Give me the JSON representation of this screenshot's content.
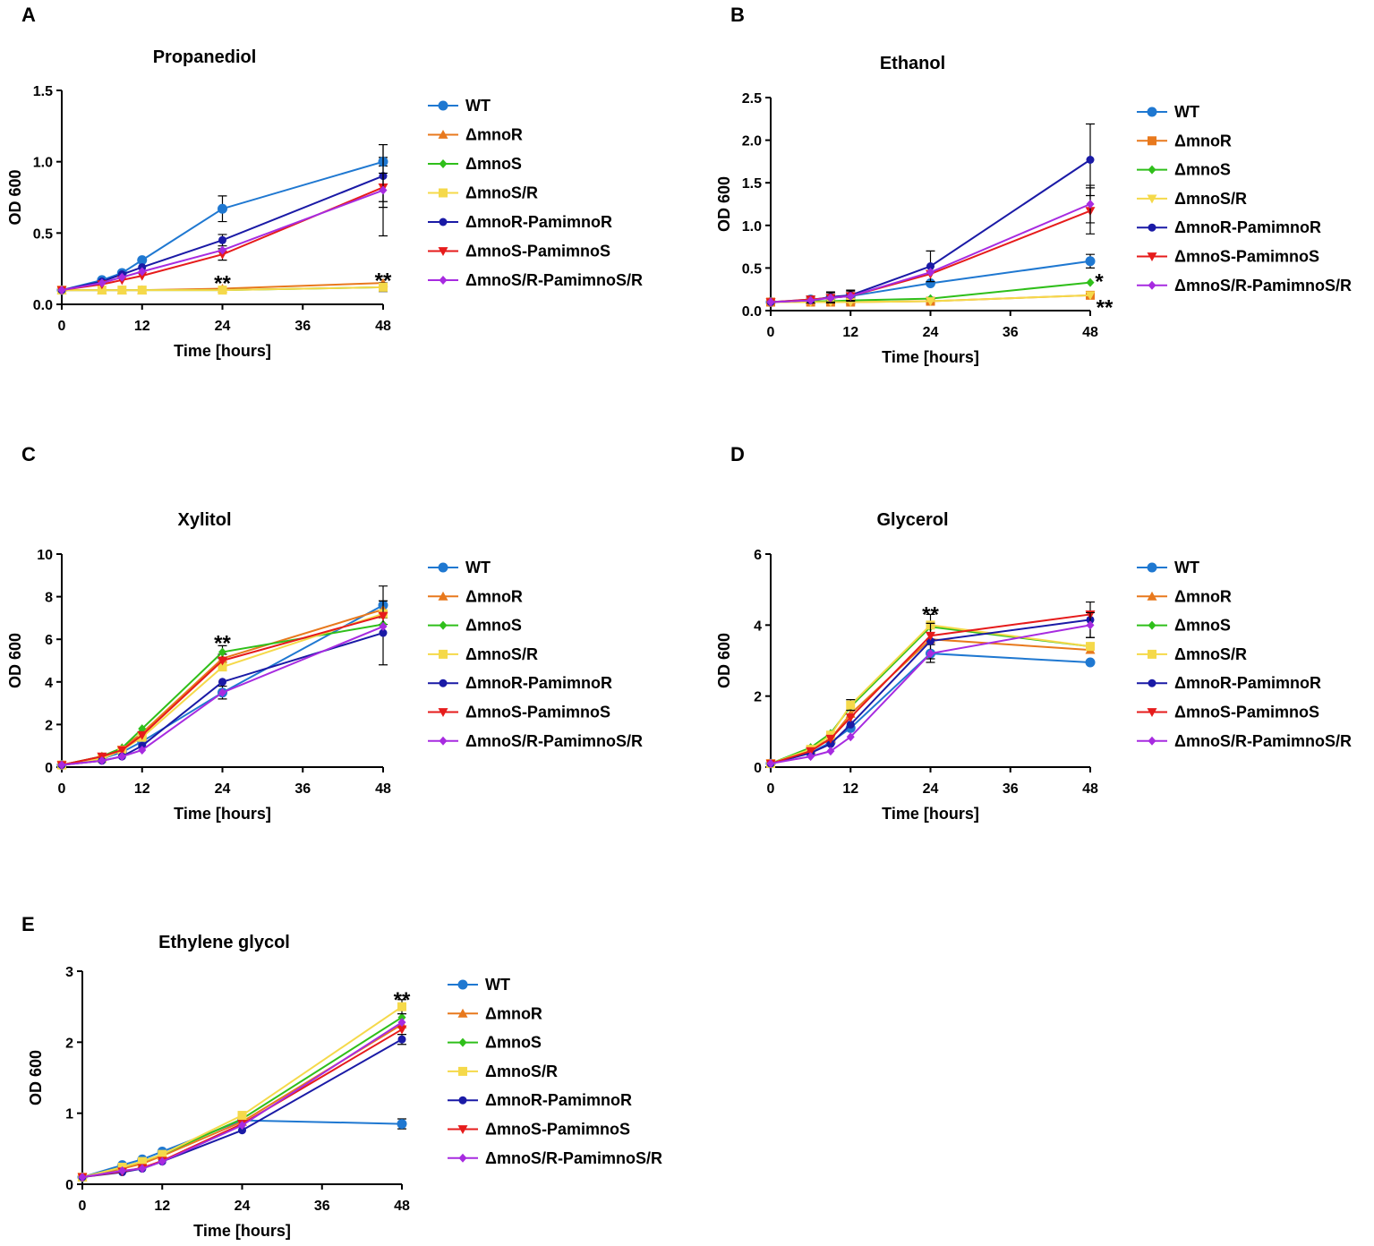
{
  "figure": {
    "legend_order": [
      "WT",
      "ΔmnoR",
      "ΔmnoS",
      "ΔmnoS/R",
      "ΔmnoR-PamimnoR",
      "ΔmnoS-PamimnoS",
      "ΔmnoS/R-PamimnoS/R"
    ]
  },
  "series_colors": {
    "WT": "#1f78d1",
    "ΔmnoR": "#e8791d",
    "ΔmnoS": "#2fbf1a",
    "ΔmnoS/R": "#f5d94a",
    "ΔmnoR-PamimnoR": "#1a1aa6",
    "ΔmnoS-PamimnoS": "#e61b1b",
    "ΔmnoS/R-PamimnoS/R": "#a72be0"
  },
  "chart_data": [
    {
      "panel": "A",
      "type": "line",
      "title": "Propanediol",
      "xlabel": "Time [hours]",
      "ylabel": "OD 600",
      "xlim": [
        0,
        48
      ],
      "ylim": [
        0,
        1.5
      ],
      "xticks": [
        0,
        12,
        24,
        36,
        48
      ],
      "yticks": [
        0.0,
        0.5,
        1.0,
        1.5
      ],
      "ytick_labels": [
        "0.0",
        "0.5",
        "1.0",
        "1.5"
      ],
      "x": [
        0,
        6,
        9,
        12,
        24,
        48
      ],
      "series": [
        {
          "name": "WT",
          "marker": "circle",
          "values": [
            0.1,
            0.17,
            0.22,
            0.31,
            0.67,
            1.0
          ],
          "errors": [
            0,
            0,
            0,
            0,
            0.09,
            0.03
          ]
        },
        {
          "name": "ΔmnoR",
          "marker": "triangle-up",
          "values": [
            0.1,
            0.1,
            0.1,
            0.1,
            0.11,
            0.15
          ],
          "errors": [
            0,
            0,
            0,
            0,
            0,
            0
          ]
        },
        {
          "name": "ΔmnoS",
          "marker": "diamond",
          "values": [
            0.1,
            0.1,
            0.1,
            0.1,
            0.1,
            0.12
          ],
          "errors": [
            0,
            0,
            0,
            0,
            0,
            0.03
          ]
        },
        {
          "name": "ΔmnoS/R",
          "marker": "square",
          "values": [
            0.1,
            0.1,
            0.1,
            0.1,
            0.1,
            0.12
          ],
          "errors": [
            0,
            0,
            0,
            0,
            0,
            0
          ]
        },
        {
          "name": "ΔmnoR-PamimnoR",
          "marker": "circle-small",
          "values": [
            0.1,
            0.16,
            0.21,
            0.26,
            0.45,
            0.9
          ],
          "errors": [
            0,
            0,
            0,
            0,
            0.04,
            0.22
          ]
        },
        {
          "name": "ΔmnoS-PamimnoS",
          "marker": "triangle-down",
          "values": [
            0.1,
            0.14,
            0.17,
            0.2,
            0.35,
            0.82
          ],
          "errors": [
            0,
            0,
            0,
            0,
            0.04,
            0.1
          ]
        },
        {
          "name": "ΔmnoS/R-PamimnoS/R",
          "marker": "diamond",
          "values": [
            0.1,
            0.15,
            0.19,
            0.23,
            0.38,
            0.8
          ],
          "errors": [
            0,
            0,
            0,
            0,
            0,
            0.32
          ]
        }
      ],
      "annotations": [
        {
          "text": "**",
          "x": 24,
          "y": 0.16
        },
        {
          "text": "**",
          "x": 48,
          "y": 0.18
        }
      ]
    },
    {
      "panel": "B",
      "type": "line",
      "title": "Ethanol",
      "xlabel": "Time [hours]",
      "ylabel": "OD 600",
      "xlim": [
        0,
        48
      ],
      "ylim": [
        0,
        2.5
      ],
      "xticks": [
        0,
        12,
        24,
        36,
        48
      ],
      "yticks": [
        0.0,
        0.5,
        1.0,
        1.5,
        2.0,
        2.5
      ],
      "ytick_labels": [
        "0.0",
        "0.5",
        "1.0",
        "1.5",
        "2.0",
        "2.5"
      ],
      "x": [
        0,
        6,
        9,
        12,
        24,
        48
      ],
      "series": [
        {
          "name": "WT",
          "marker": "circle",
          "values": [
            0.1,
            0.13,
            0.15,
            0.17,
            0.32,
            0.58
          ],
          "errors": [
            0,
            0,
            0.03,
            0.03,
            0,
            0.08
          ]
        },
        {
          "name": "ΔmnoR",
          "marker": "square",
          "values": [
            0.1,
            0.1,
            0.1,
            0.1,
            0.11,
            0.18
          ],
          "errors": [
            0,
            0.02,
            0.02,
            0.02,
            0,
            0
          ]
        },
        {
          "name": "ΔmnoS",
          "marker": "diamond",
          "values": [
            0.1,
            0.11,
            0.11,
            0.12,
            0.14,
            0.33
          ],
          "errors": [
            0,
            0,
            0,
            0,
            0,
            0
          ]
        },
        {
          "name": "ΔmnoS/R",
          "marker": "triangle-down",
          "values": [
            0.1,
            0.1,
            0.1,
            0.1,
            0.11,
            0.18
          ],
          "errors": [
            0,
            0,
            0,
            0,
            0,
            0
          ]
        },
        {
          "name": "ΔmnoR-PamimnoR",
          "marker": "circle-small",
          "values": [
            0.1,
            0.12,
            0.16,
            0.18,
            0.52,
            1.77
          ],
          "errors": [
            0,
            0,
            0.06,
            0.06,
            0.18,
            0.42
          ]
        },
        {
          "name": "ΔmnoS-PamimnoS",
          "marker": "triangle-down",
          "values": [
            0.1,
            0.13,
            0.15,
            0.17,
            0.43,
            1.17
          ],
          "errors": [
            0,
            0.04,
            0.06,
            0.06,
            0,
            0.27
          ]
        },
        {
          "name": "ΔmnoS/R-PamimnoS/R",
          "marker": "diamond",
          "values": [
            0.1,
            0.12,
            0.15,
            0.17,
            0.45,
            1.25
          ],
          "errors": [
            0,
            0,
            0,
            0,
            0,
            0.22
          ]
        }
      ],
      "annotations": [
        {
          "text": "*",
          "x": 48,
          "y": 0.36,
          "dx": 10
        },
        {
          "text": "**",
          "x": 48,
          "y": 0.06,
          "dx": 16
        }
      ]
    },
    {
      "panel": "C",
      "type": "line",
      "title": "Xylitol",
      "xlabel": "Time [hours]",
      "ylabel": "OD 600",
      "xlim": [
        0,
        48
      ],
      "ylim": [
        0,
        10
      ],
      "xticks": [
        0,
        12,
        24,
        36,
        48
      ],
      "yticks": [
        0,
        2,
        4,
        6,
        8,
        10
      ],
      "ytick_labels": [
        "0",
        "2",
        "4",
        "6",
        "8",
        "10"
      ],
      "x": [
        0,
        6,
        9,
        12,
        24,
        48
      ],
      "series": [
        {
          "name": "WT",
          "marker": "circle",
          "values": [
            0.1,
            0.4,
            0.7,
            1.2,
            3.5,
            7.6
          ],
          "errors": [
            0,
            0,
            0,
            0,
            0.3,
            0.9
          ]
        },
        {
          "name": "ΔmnoR",
          "marker": "triangle-up",
          "values": [
            0.1,
            0.5,
            0.9,
            1.6,
            5.1,
            7.4
          ],
          "errors": [
            0,
            0,
            0,
            0,
            0.2,
            0.4
          ]
        },
        {
          "name": "ΔmnoS",
          "marker": "diamond",
          "values": [
            0.1,
            0.5,
            0.9,
            1.8,
            5.4,
            6.7
          ],
          "errors": [
            0,
            0,
            0,
            0,
            0.3,
            0
          ]
        },
        {
          "name": "ΔmnoS/R",
          "marker": "square",
          "values": [
            0.1,
            0.4,
            0.8,
            1.4,
            4.7,
            7.2
          ],
          "errors": [
            0,
            0,
            0,
            0,
            0,
            0
          ]
        },
        {
          "name": "ΔmnoR-PamimnoR",
          "marker": "circle-small",
          "values": [
            0.1,
            0.3,
            0.5,
            1.0,
            4.0,
            6.3
          ],
          "errors": [
            0,
            0,
            0,
            0,
            0,
            1.5
          ]
        },
        {
          "name": "ΔmnoS-PamimnoS",
          "marker": "triangle-down",
          "values": [
            0.1,
            0.5,
            0.8,
            1.5,
            5.0,
            7.1
          ],
          "errors": [
            0,
            0,
            0,
            0,
            0,
            0
          ]
        },
        {
          "name": "ΔmnoS/R-PamimnoS/R",
          "marker": "diamond",
          "values": [
            0.1,
            0.3,
            0.5,
            0.8,
            3.5,
            6.6
          ],
          "errors": [
            0,
            0,
            0,
            0,
            0,
            0
          ]
        }
      ],
      "annotations": [
        {
          "text": "**",
          "x": 24,
          "y": 5.9
        }
      ]
    },
    {
      "panel": "D",
      "type": "line",
      "title": "Glycerol",
      "xlabel": "Time [hours]",
      "ylabel": "OD 600",
      "xlim": [
        0,
        48
      ],
      "ylim": [
        0,
        6
      ],
      "xticks": [
        0,
        12,
        24,
        36,
        48
      ],
      "yticks": [
        0,
        2,
        4,
        6
      ],
      "ytick_labels": [
        "0",
        "2",
        "4",
        "6"
      ],
      "x": [
        0,
        6,
        9,
        12,
        24,
        48
      ],
      "series": [
        {
          "name": "WT",
          "marker": "circle",
          "values": [
            0.1,
            0.4,
            0.7,
            1.1,
            3.2,
            2.95
          ],
          "errors": [
            0,
            0,
            0,
            0,
            0.25,
            0
          ]
        },
        {
          "name": "ΔmnoR",
          "marker": "triangle-up",
          "values": [
            0.1,
            0.5,
            0.8,
            1.5,
            3.6,
            3.3
          ],
          "errors": [
            0,
            0,
            0,
            0,
            0,
            0
          ]
        },
        {
          "name": "ΔmnoS",
          "marker": "diamond",
          "values": [
            0.1,
            0.55,
            0.95,
            1.7,
            3.95,
            3.4
          ],
          "errors": [
            0,
            0,
            0,
            0,
            0.35,
            0
          ]
        },
        {
          "name": "ΔmnoS/R",
          "marker": "square",
          "values": [
            0.1,
            0.5,
            0.9,
            1.75,
            4.0,
            3.4
          ],
          "errors": [
            0,
            0,
            0,
            0.15,
            0,
            0
          ]
        },
        {
          "name": "ΔmnoR-PamimnoR",
          "marker": "circle-small",
          "values": [
            0.1,
            0.4,
            0.65,
            1.2,
            3.55,
            4.15
          ],
          "errors": [
            0,
            0,
            0,
            0,
            0.5,
            0.5
          ]
        },
        {
          "name": "ΔmnoS-PamimnoS",
          "marker": "triangle-down",
          "values": [
            0.1,
            0.45,
            0.8,
            1.4,
            3.7,
            4.3
          ],
          "errors": [
            0,
            0,
            0,
            0,
            0,
            0
          ]
        },
        {
          "name": "ΔmnoS/R-PamimnoS/R",
          "marker": "diamond",
          "values": [
            0.1,
            0.3,
            0.45,
            0.85,
            3.2,
            4.0
          ],
          "errors": [
            0,
            0,
            0,
            0,
            0,
            0.35
          ]
        }
      ],
      "annotations": [
        {
          "text": "**",
          "x": 24,
          "y": 4.35
        }
      ]
    },
    {
      "panel": "E",
      "type": "line",
      "title": "Ethylene glycol",
      "xlabel": "Time [hours]",
      "ylabel": "OD 600",
      "xlim": [
        0,
        48
      ],
      "ylim": [
        0,
        3
      ],
      "xticks": [
        0,
        12,
        24,
        36,
        48
      ],
      "yticks": [
        0,
        1,
        2,
        3
      ],
      "ytick_labels": [
        "0",
        "1",
        "2",
        "3"
      ],
      "x": [
        0,
        6,
        9,
        12,
        24,
        48
      ],
      "series": [
        {
          "name": "WT",
          "marker": "circle",
          "values": [
            0.1,
            0.27,
            0.35,
            0.46,
            0.9,
            0.85
          ],
          "errors": [
            0,
            0,
            0,
            0,
            0,
            0.07
          ]
        },
        {
          "name": "ΔmnoR",
          "marker": "triangle-up",
          "values": [
            0.1,
            0.22,
            0.29,
            0.4,
            0.88,
            2.25
          ],
          "errors": [
            0,
            0,
            0,
            0,
            0,
            0
          ]
        },
        {
          "name": "ΔmnoS",
          "marker": "diamond",
          "values": [
            0.1,
            0.24,
            0.32,
            0.42,
            0.92,
            2.35
          ],
          "errors": [
            0,
            0,
            0,
            0,
            0,
            0
          ]
        },
        {
          "name": "ΔmnoS/R",
          "marker": "square",
          "values": [
            0.1,
            0.24,
            0.32,
            0.42,
            0.97,
            2.5
          ],
          "errors": [
            0,
            0,
            0,
            0,
            0,
            0.1
          ]
        },
        {
          "name": "ΔmnoR-PamimnoR",
          "marker": "circle-small",
          "values": [
            0.1,
            0.17,
            0.22,
            0.32,
            0.76,
            2.04
          ],
          "errors": [
            0,
            0,
            0,
            0,
            0,
            0.07
          ]
        },
        {
          "name": "ΔmnoS-PamimnoS",
          "marker": "triangle-down",
          "values": [
            0.1,
            0.18,
            0.23,
            0.33,
            0.85,
            2.18
          ],
          "errors": [
            0,
            0,
            0,
            0,
            0,
            0
          ]
        },
        {
          "name": "ΔmnoS/R-PamimnoS/R",
          "marker": "diamond",
          "values": [
            0.1,
            0.19,
            0.22,
            0.32,
            0.83,
            2.28
          ],
          "errors": [
            0,
            0,
            0,
            0,
            0,
            0
          ]
        }
      ],
      "annotations": [
        {
          "text": "**",
          "x": 48,
          "y": 2.62
        }
      ]
    }
  ]
}
